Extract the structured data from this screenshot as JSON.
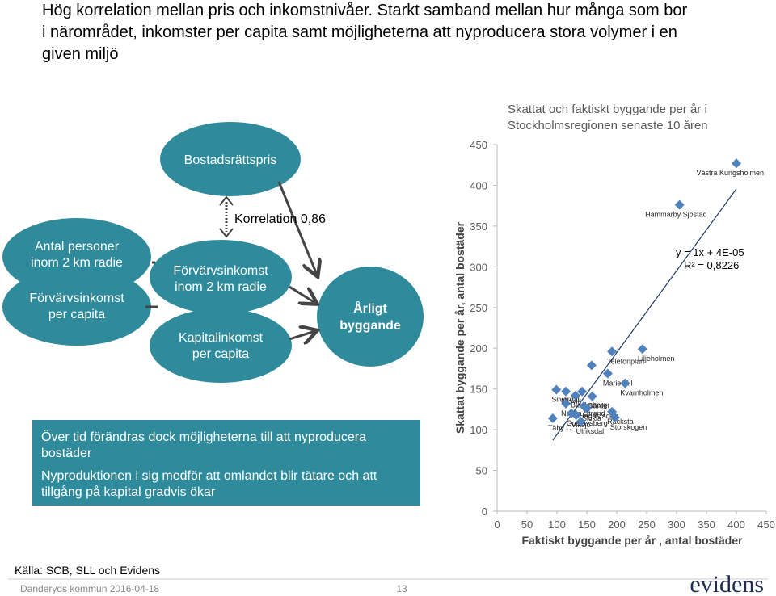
{
  "header": {
    "title_lines": [
      "Hög korrelation mellan pris och inkomstnivåer. Starkt samband mellan hur många som bor",
      "i närområdet, inkomster per capita samt möjligheterna att nyproducera stora volymer i en",
      "given miljö"
    ]
  },
  "diagram": {
    "top_node": "Bostadsrättspris",
    "correlation": "Korrelation 0,86",
    "left_nodes": [
      [
        "Antal personer",
        "inom 2 km radie"
      ],
      [
        "Förvärvsinkomst",
        "per capita"
      ]
    ],
    "middle_nodes": [
      [
        "Förvärvsinkomst",
        "inom 2 km radie"
      ],
      [
        "Kapitalinkomst",
        "per capita"
      ]
    ],
    "target": [
      "Årligt",
      "byggande"
    ]
  },
  "note_box": {
    "paragraphs": [
      [
        "Över tid förändras dock möjligheterna till att nyproducera",
        "bostäder"
      ],
      [
        "Nyproduktionen i sig medför att omlandet blir tätare och att",
        "tillgång på kapital gradvis ökar"
      ]
    ]
  },
  "footer": {
    "source": "Källa: SCB, SLL och Evidens",
    "presenter": "Danderyds kommun 2016-04-18",
    "page": "13",
    "logo": "evidens"
  },
  "chart_data": {
    "type": "scatter",
    "title_lines": [
      "Skattat och faktiskt byggande per år i",
      "Stockholmsregionen senaste 10 åren"
    ],
    "x_label": "Faktiskt byggande per år , antal bostäder",
    "y_label": "Skattat byggande per år, antal bostäder",
    "trend_equation": "y = 1x + 4E-05",
    "trend_r2": "R² = 0,8226",
    "series": [
      {
        "color": "#4f81bd",
        "x": [
          400,
          305,
          192,
          243,
          158,
          185,
          214,
          99,
          115,
          142,
          131,
          159,
          115,
          145,
          150,
          124,
          192,
          93,
          132,
          140,
          197
        ],
        "values": [
          427,
          376,
          196,
          199,
          179,
          169,
          157,
          149,
          147,
          147,
          142,
          141,
          132,
          129,
          126,
          120,
          122,
          114,
          118,
          110,
          115
        ],
        "labels": [
          "Västra Kungsholmen",
          "Hammarby Sjöstad",
          "Telefonplan",
          "Liljeholmen",
          null,
          "Mariehäll",
          "Kvarnholmen",
          "Silverdal",
          "Ursvik",
          null,
          "Blackeberg",
          "Gärdet",
          "Nacka Strand",
          "Hagastaden",
          "Sickla",
          "Gustavsberg",
          "Räcksta",
          "Täby C",
          "Viksjö",
          "Ulriksdal",
          "Storskogen"
        ]
      }
    ],
    "xlim": [
      0,
      450
    ],
    "ylim": [
      0,
      450
    ],
    "xticks": [
      0,
      50,
      100,
      150,
      200,
      250,
      300,
      350,
      400,
      450
    ],
    "yticks": [
      0,
      50,
      100,
      150,
      200,
      250,
      300,
      350,
      400,
      450
    ]
  }
}
